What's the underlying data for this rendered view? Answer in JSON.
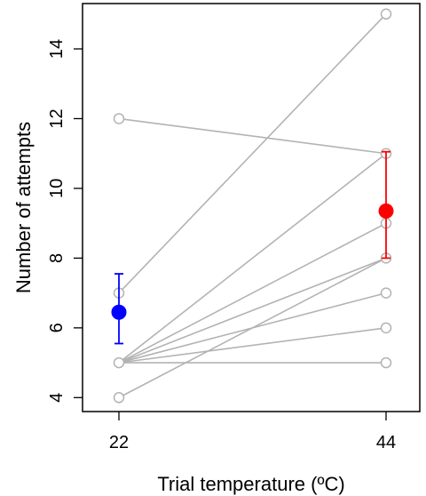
{
  "chart_data": {
    "type": "scatter",
    "title": "",
    "xlabel": "Trial temperature (ºC)",
    "ylabel": "Number of attempts",
    "x_categories": [
      "22",
      "44"
    ],
    "ylim": [
      3.6,
      15.3
    ],
    "y_ticks": [
      4,
      6,
      8,
      10,
      12,
      14
    ],
    "grid": false,
    "legend": "none",
    "colors": {
      "individual": "#b3b3b3",
      "mean_22": "#0000ff",
      "mean_44": "#ff0000",
      "frame": "#000000"
    },
    "individuals": [
      {
        "at_22": 12,
        "at_44": 11
      },
      {
        "at_22": 7,
        "at_44": 15
      },
      {
        "at_22": 5,
        "at_44": 11
      },
      {
        "at_22": 5,
        "at_44": 9
      },
      {
        "at_22": 5,
        "at_44": 8
      },
      {
        "at_22": 5,
        "at_44": 7
      },
      {
        "at_22": 5,
        "at_44": 6
      },
      {
        "at_22": 5,
        "at_44": 5
      },
      {
        "at_22": 4,
        "at_44": 8
      }
    ],
    "means": [
      {
        "x": "22",
        "mean": 6.45,
        "lower": 5.55,
        "upper": 7.55
      },
      {
        "x": "44",
        "mean": 9.35,
        "lower": 8.0,
        "upper": 11.05
      }
    ]
  }
}
